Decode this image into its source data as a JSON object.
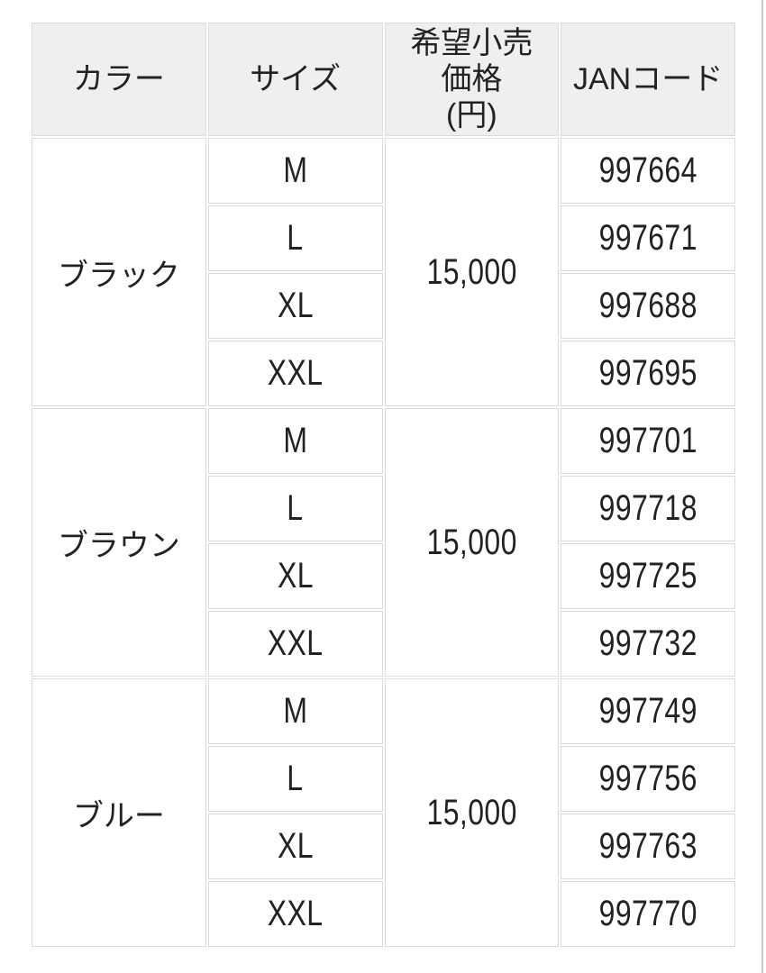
{
  "colors": {
    "page_bg": "#ffffff",
    "header_bg": "#efefef",
    "cell_bg": "#ffffff",
    "border": "#dadada",
    "text": "#222222",
    "edge_line": "#c8c8c8"
  },
  "table": {
    "headers": [
      "カラー",
      "サイズ",
      "希望小売\n価格\n(円)",
      "JANコード"
    ],
    "groups": [
      {
        "color": "ブラック",
        "price": "15,000",
        "rows": [
          {
            "size": "M",
            "jan": "997664"
          },
          {
            "size": "L",
            "jan": "997671"
          },
          {
            "size": "XL",
            "jan": "997688"
          },
          {
            "size": "XXL",
            "jan": "997695"
          }
        ]
      },
      {
        "color": "ブラウン",
        "price": "15,000",
        "rows": [
          {
            "size": "M",
            "jan": "997701"
          },
          {
            "size": "L",
            "jan": "997718"
          },
          {
            "size": "XL",
            "jan": "997725"
          },
          {
            "size": "XXL",
            "jan": "997732"
          }
        ]
      },
      {
        "color": "ブルー",
        "price": "15,000",
        "rows": [
          {
            "size": "M",
            "jan": "997749"
          },
          {
            "size": "L",
            "jan": "997756"
          },
          {
            "size": "XL",
            "jan": "997763"
          },
          {
            "size": "XXL",
            "jan": "997770"
          }
        ]
      }
    ]
  }
}
